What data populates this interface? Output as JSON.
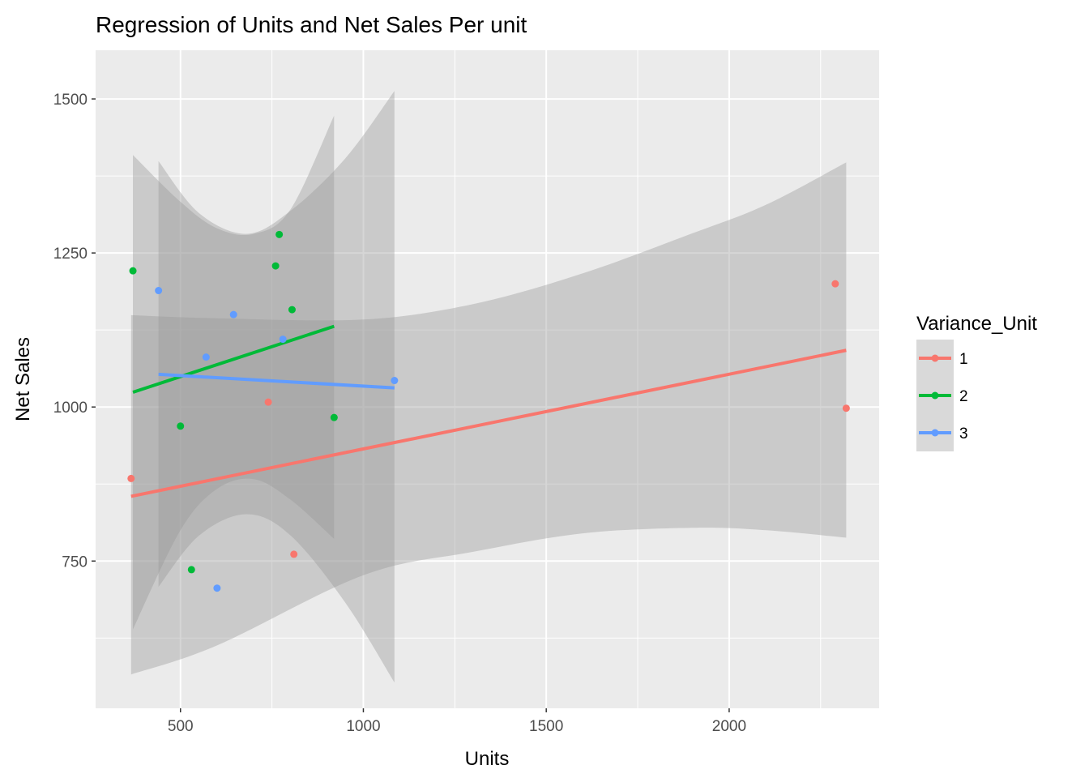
{
  "chart_data": {
    "type": "scatter",
    "title": "Regression of Units and Net Sales Per unit",
    "xlabel": "Units",
    "ylabel": "Net Sales",
    "xlim": [
      268,
      2410
    ],
    "ylim": [
      511,
      1579
    ],
    "x_ticks": [
      500,
      1000,
      1500,
      2000
    ],
    "x_tick_labels": [
      "500",
      "1000",
      "1500",
      "2000"
    ],
    "y_ticks": [
      750,
      1000,
      1250,
      1500
    ],
    "y_tick_labels": [
      "750",
      "1000",
      "1250",
      "1500"
    ],
    "grid": true,
    "legend": {
      "title": "Variance_Unit",
      "position": "right"
    },
    "series": [
      {
        "name": "1",
        "color": "#F8766D",
        "points": [
          {
            "x": 365,
            "y": 884
          },
          {
            "x": 740,
            "y": 1008
          },
          {
            "x": 810,
            "y": 761
          },
          {
            "x": 2290,
            "y": 1200
          },
          {
            "x": 2320,
            "y": 998
          }
        ],
        "fit": {
          "x": [
            365,
            2320
          ],
          "y": [
            855,
            1092
          ]
        },
        "band_upper": [
          {
            "x": 365,
            "y": 1149
          },
          {
            "x": 600,
            "y": 1144
          },
          {
            "x": 1000,
            "y": 1142
          },
          {
            "x": 1300,
            "y": 1167
          },
          {
            "x": 1600,
            "y": 1217
          },
          {
            "x": 1900,
            "y": 1282
          },
          {
            "x": 2100,
            "y": 1328
          },
          {
            "x": 2320,
            "y": 1397
          }
        ],
        "band_lower": [
          {
            "x": 365,
            "y": 566
          },
          {
            "x": 600,
            "y": 613
          },
          {
            "x": 1000,
            "y": 727
          },
          {
            "x": 1300,
            "y": 765
          },
          {
            "x": 1600,
            "y": 795
          },
          {
            "x": 1900,
            "y": 804
          },
          {
            "x": 2100,
            "y": 800
          },
          {
            "x": 2320,
            "y": 788
          }
        ]
      },
      {
        "name": "2",
        "color": "#00BA38",
        "points": [
          {
            "x": 370,
            "y": 1221
          },
          {
            "x": 500,
            "y": 969
          },
          {
            "x": 530,
            "y": 736
          },
          {
            "x": 760,
            "y": 1229
          },
          {
            "x": 770,
            "y": 1280
          },
          {
            "x": 805,
            "y": 1158
          },
          {
            "x": 920,
            "y": 983
          }
        ],
        "fit": {
          "x": [
            370,
            920
          ],
          "y": [
            1024,
            1131
          ]
        },
        "band_upper": [
          {
            "x": 370,
            "y": 1409
          },
          {
            "x": 500,
            "y": 1333
          },
          {
            "x": 600,
            "y": 1290
          },
          {
            "x": 700,
            "y": 1281
          },
          {
            "x": 800,
            "y": 1320
          },
          {
            "x": 920,
            "y": 1473
          }
        ],
        "band_lower": [
          {
            "x": 370,
            "y": 639
          },
          {
            "x": 500,
            "y": 800
          },
          {
            "x": 600,
            "y": 867
          },
          {
            "x": 700,
            "y": 883
          },
          {
            "x": 800,
            "y": 850
          },
          {
            "x": 920,
            "y": 786
          }
        ]
      },
      {
        "name": "3",
        "color": "#619CFF",
        "points": [
          {
            "x": 440,
            "y": 1189
          },
          {
            "x": 570,
            "y": 1081
          },
          {
            "x": 600,
            "y": 706
          },
          {
            "x": 645,
            "y": 1150
          },
          {
            "x": 780,
            "y": 1110
          },
          {
            "x": 1085,
            "y": 1043
          }
        ],
        "fit": {
          "x": [
            440,
            1085
          ],
          "y": [
            1053,
            1031
          ]
        },
        "band_upper": [
          {
            "x": 440,
            "y": 1399
          },
          {
            "x": 550,
            "y": 1315
          },
          {
            "x": 680,
            "y": 1281
          },
          {
            "x": 800,
            "y": 1318
          },
          {
            "x": 950,
            "y": 1403
          },
          {
            "x": 1085,
            "y": 1513
          }
        ],
        "band_lower": [
          {
            "x": 440,
            "y": 708
          },
          {
            "x": 550,
            "y": 791
          },
          {
            "x": 680,
            "y": 826
          },
          {
            "x": 800,
            "y": 792
          },
          {
            "x": 950,
            "y": 683
          },
          {
            "x": 1085,
            "y": 553
          }
        ]
      }
    ]
  }
}
